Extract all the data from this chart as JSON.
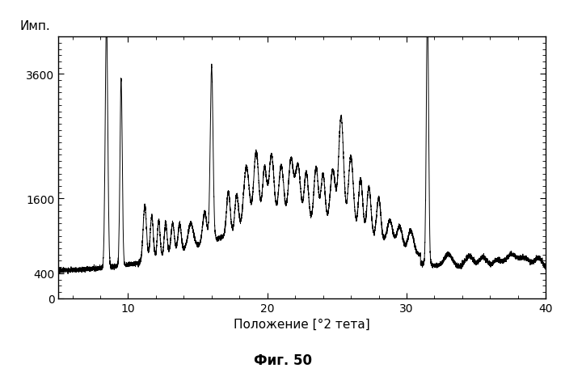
{
  "ylabel_top": "Имп.",
  "xlabel": "Положение [°2 тета]",
  "caption": "Фиг. 50",
  "xlim": [
    5,
    40
  ],
  "ylim": [
    0,
    4200
  ],
  "yticks": [
    0,
    400,
    1600,
    3600
  ],
  "xticks": [
    10,
    20,
    30,
    40
  ],
  "line_color": "#000000",
  "bg_color": "#ffffff",
  "linewidth": 0.7
}
